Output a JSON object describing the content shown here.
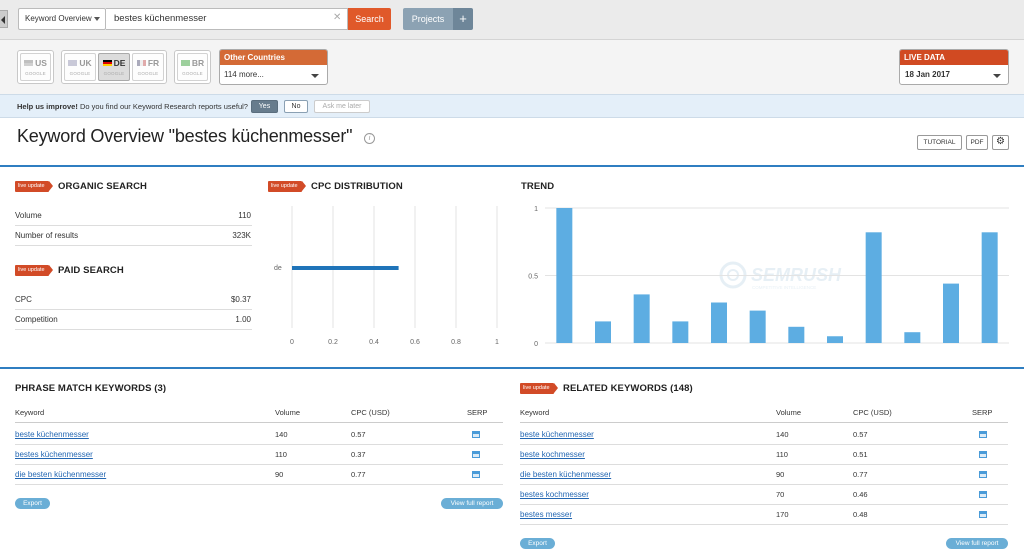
{
  "search": {
    "database_label": "Keyword Overview",
    "query": "bestes küchenmesser",
    "clear_glyph": "✕",
    "search_label": "Search",
    "projects_label": "Projects",
    "projects_plus": "+"
  },
  "databases": [
    {
      "code": "US",
      "engine": "GOOGLE",
      "active": false
    },
    {
      "code": "UK",
      "engine": "GOOGLE",
      "active": false
    },
    {
      "code": "DE",
      "engine": "GOOGLE",
      "active": true
    },
    {
      "code": "FR",
      "engine": "GOOGLE",
      "active": false
    },
    {
      "code": "BR",
      "engine": "GOOGLE",
      "active": false
    }
  ],
  "other_countries": {
    "title": "Other Countries",
    "value": "114 more..."
  },
  "live_data": {
    "title": "LIVE DATA",
    "value": "18 Jan 2017"
  },
  "help_bar": {
    "bold": "Help us improve!",
    "text": " Do you find our Keyword Research reports useful?",
    "yes": "Yes",
    "no": "No",
    "later": "Ask me later"
  },
  "page": {
    "title": "Keyword Overview \"bestes küchenmesser\"",
    "info_glyph": "i",
    "tutorial": "TUTORIAL",
    "pdf": "PDF",
    "gear_glyph": "⚙"
  },
  "badge_label": "live update",
  "organic": {
    "title": "ORGANIC SEARCH",
    "rows": [
      {
        "label": "Volume",
        "value": "110"
      },
      {
        "label": "Number of results",
        "value": "323K"
      }
    ]
  },
  "paid": {
    "title": "PAID SEARCH",
    "rows": [
      {
        "label": "CPC",
        "value": "$0.37"
      },
      {
        "label": "Competition",
        "value": "1.00"
      }
    ]
  },
  "cpc_distribution": {
    "title": "CPC DISTRIBUTION",
    "chart_data": {
      "type": "bar",
      "orientation": "horizontal",
      "categories": [
        "de"
      ],
      "values": [
        0.52
      ],
      "xlim": [
        0,
        1
      ],
      "xticks": [
        "0",
        "0.2",
        "0.4",
        "0.6",
        "0.8",
        "1"
      ],
      "color": "#1f74b9",
      "grid": true
    }
  },
  "trend": {
    "title": "TREND",
    "watermark": "SEMRUSH",
    "watermark_sub": "COMPETITIVE INTELLIGENCE",
    "chart_data": {
      "type": "bar",
      "values": [
        1,
        0.16,
        0.36,
        0.16,
        0.3,
        0.24,
        0.12,
        0.05,
        0.82,
        0.08,
        0.44,
        0.82
      ],
      "ylim": [
        0,
        1
      ],
      "yticks": [
        "0",
        "0.5",
        "1"
      ],
      "color": "#5dade2",
      "grid": true
    }
  },
  "phrase_match": {
    "title": "PHRASE MATCH KEYWORDS (3)",
    "columns": [
      "Keyword",
      "Volume",
      "CPC (USD)",
      "SERP"
    ],
    "rows": [
      {
        "keyword": "beste küchenmesser",
        "volume": "140",
        "cpc": "0.57"
      },
      {
        "keyword": "bestes küchenmesser",
        "volume": "110",
        "cpc": "0.37"
      },
      {
        "keyword": "die besten küchenmesser",
        "volume": "90",
        "cpc": "0.77"
      }
    ],
    "export": "Export",
    "view_full": "View full report"
  },
  "related": {
    "title": "RELATED KEYWORDS (148)",
    "columns": [
      "Keyword",
      "Volume",
      "CPC (USD)",
      "SERP"
    ],
    "rows": [
      {
        "keyword": "beste küchenmesser",
        "volume": "140",
        "cpc": "0.57"
      },
      {
        "keyword": "beste kochmesser",
        "volume": "110",
        "cpc": "0.51"
      },
      {
        "keyword": "die besten küchenmesser",
        "volume": "90",
        "cpc": "0.77"
      },
      {
        "keyword": "bestes kochmesser",
        "volume": "70",
        "cpc": "0.46"
      },
      {
        "keyword": "bestes messer",
        "volume": "170",
        "cpc": "0.48"
      }
    ],
    "export": "Export",
    "view_full": "View full report"
  }
}
